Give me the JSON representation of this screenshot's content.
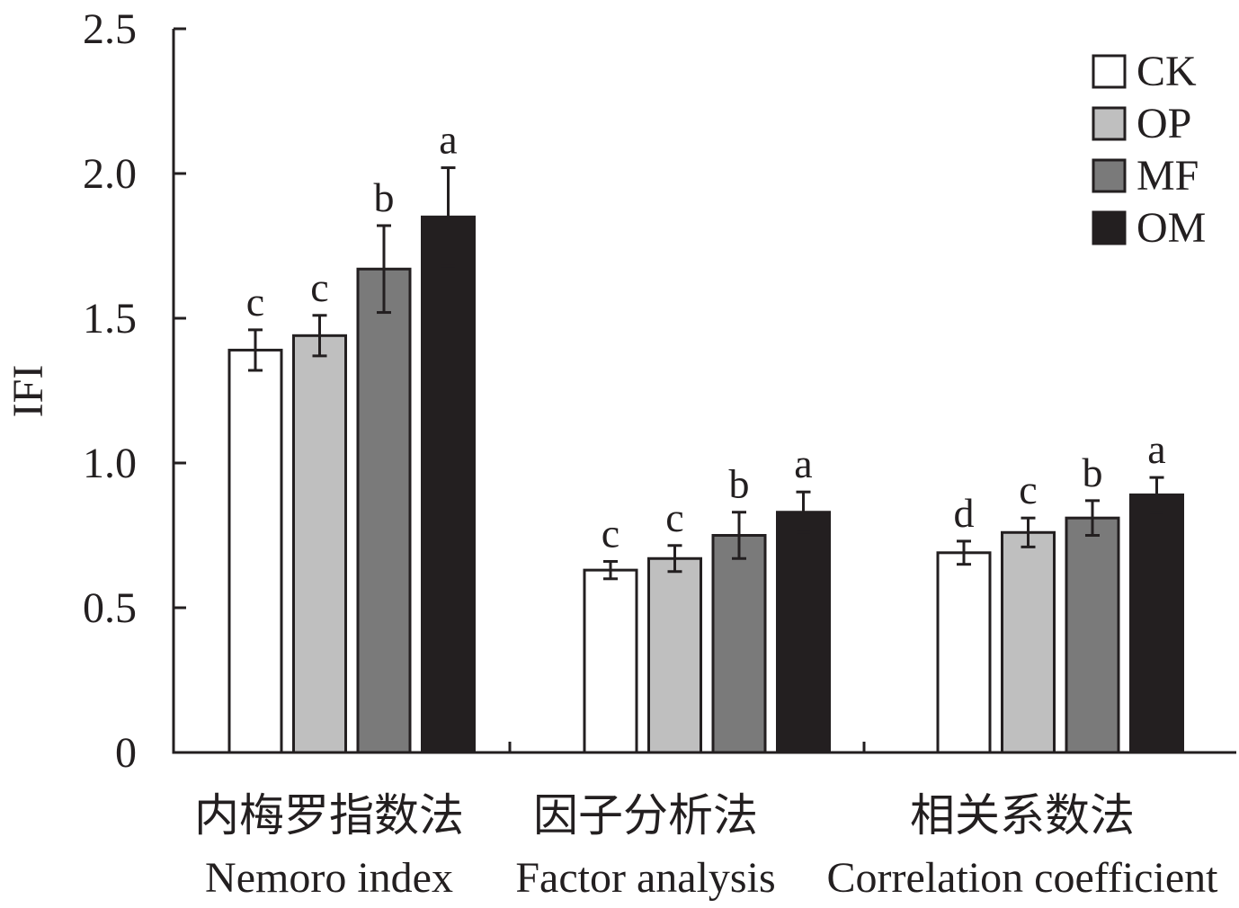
{
  "chart_data": {
    "type": "bar",
    "ylabel": "IFI",
    "ylim": [
      0,
      2.5
    ],
    "yticks": [
      "0",
      "0.5",
      "1.0",
      "1.5",
      "2.0",
      "2.5"
    ],
    "ytick_values": [
      0,
      0.5,
      1.0,
      1.5,
      2.0,
      2.5
    ],
    "categories": [
      {
        "zh": "内梅罗指数法",
        "en": "Nemoro index"
      },
      {
        "zh": "因子分析法",
        "en": "Factor analysis"
      },
      {
        "zh": "相关系数法",
        "en": "Correlation coefficient"
      }
    ],
    "series": [
      {
        "name": "CK",
        "color": "#ffffff",
        "values": [
          1.39,
          0.63,
          0.69
        ],
        "errors": [
          0.07,
          0.03,
          0.04
        ],
        "letters": [
          "c",
          "c",
          "d"
        ]
      },
      {
        "name": "OP",
        "color": "#bfbfbf",
        "values": [
          1.44,
          0.67,
          0.76
        ],
        "errors": [
          0.07,
          0.045,
          0.05
        ],
        "letters": [
          "c",
          "c",
          "c"
        ]
      },
      {
        "name": "MF",
        "color": "#7a7a7a",
        "values": [
          1.67,
          0.75,
          0.81
        ],
        "errors": [
          0.15,
          0.08,
          0.06
        ],
        "letters": [
          "b",
          "b",
          "b"
        ]
      },
      {
        "name": "OM",
        "color": "#231f20",
        "values": [
          1.85,
          0.83,
          0.89
        ],
        "errors": [
          0.17,
          0.07,
          0.06
        ],
        "letters": [
          "a",
          "a",
          "a"
        ]
      }
    ],
    "legend_position": "top-right",
    "grid": false
  }
}
